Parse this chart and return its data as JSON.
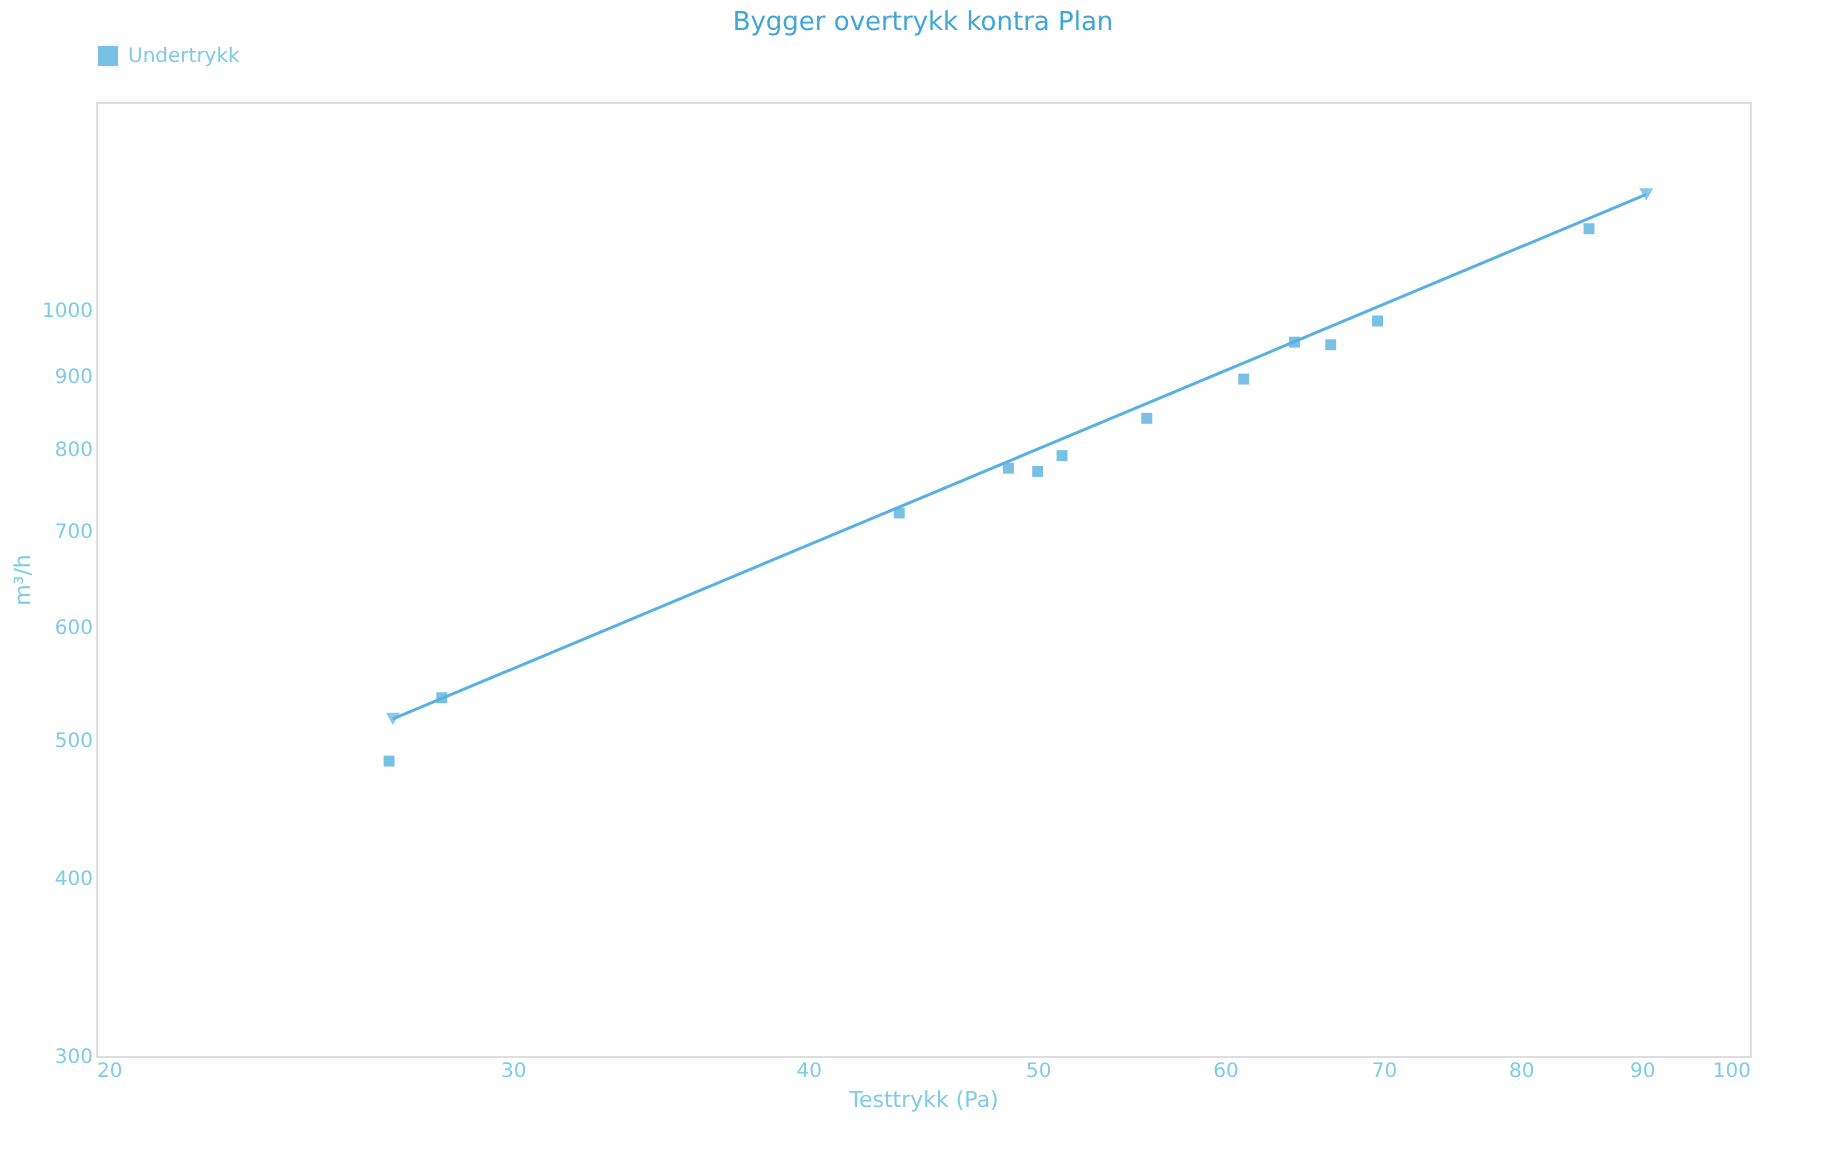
{
  "chart_data": {
    "type": "scatter",
    "title": "Bygger overtrykk kontra Plan",
    "xlabel": "Testtrykk (Pa)",
    "ylabel": "m³/h",
    "log": "xy",
    "xlim": [
      20,
      100
    ],
    "ylim": [
      300,
      1400
    ],
    "xticks": [
      20,
      30,
      40,
      50,
      60,
      70,
      80,
      90,
      100
    ],
    "yticks": [
      300,
      400,
      500,
      600,
      700,
      800,
      900,
      1000
    ],
    "grid": false,
    "legend": "top",
    "series": [
      {
        "name": "Undertrykk",
        "marker": "square",
        "color": "#3fa6d8",
        "x": [
          26.6,
          28.0,
          43.7,
          48.6,
          50.0,
          51.2,
          55.6,
          61.1,
          64.2,
          66.5,
          69.6,
          85.5
        ],
        "values": [
          483,
          535,
          721,
          775,
          771,
          791,
          840,
          895,
          950,
          946,
          983,
          1141
        ]
      },
      {
        "type": "line",
        "marker": "triangle",
        "color": "#5ab0e0",
        "x": [
          26.7,
          90.4
        ],
        "values": [
          517,
          1206
        ]
      }
    ]
  }
}
